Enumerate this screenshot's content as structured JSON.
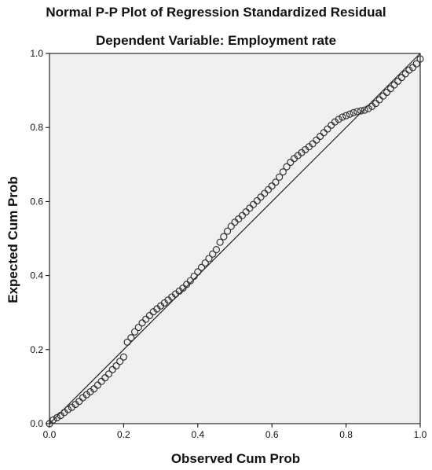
{
  "chart_data": {
    "type": "scatter",
    "title": "Normal P-P Plot of Regression Standardized Residual",
    "subtitle": "Dependent Variable: Employment rate",
    "xlabel": "Observed Cum Prob",
    "ylabel": "Expected Cum Prob",
    "xlim": [
      0,
      1
    ],
    "ylim": [
      0,
      1
    ],
    "xticks": [
      "0.0",
      "0.2",
      "0.4",
      "0.6",
      "0.8",
      "1.0"
    ],
    "yticks": [
      "0.0",
      "0.2",
      "0.4",
      "0.6",
      "0.8",
      "1.0"
    ],
    "reference_line": [
      [
        0,
        0
      ],
      [
        1,
        1
      ]
    ],
    "grid": false,
    "plot_background": "#f0f0f0",
    "marker_color": "#333333",
    "points": [
      [
        0.0,
        0.0
      ],
      [
        0.01,
        0.01
      ],
      [
        0.02,
        0.016
      ],
      [
        0.03,
        0.022
      ],
      [
        0.04,
        0.03
      ],
      [
        0.05,
        0.038
      ],
      [
        0.06,
        0.044
      ],
      [
        0.07,
        0.052
      ],
      [
        0.08,
        0.06
      ],
      [
        0.09,
        0.07
      ],
      [
        0.1,
        0.078
      ],
      [
        0.11,
        0.086
      ],
      [
        0.12,
        0.094
      ],
      [
        0.13,
        0.104
      ],
      [
        0.14,
        0.114
      ],
      [
        0.15,
        0.124
      ],
      [
        0.16,
        0.134
      ],
      [
        0.17,
        0.146
      ],
      [
        0.18,
        0.156
      ],
      [
        0.19,
        0.168
      ],
      [
        0.2,
        0.18
      ],
      [
        0.21,
        0.22
      ],
      [
        0.22,
        0.232
      ],
      [
        0.23,
        0.248
      ],
      [
        0.24,
        0.26
      ],
      [
        0.25,
        0.272
      ],
      [
        0.26,
        0.282
      ],
      [
        0.27,
        0.292
      ],
      [
        0.28,
        0.302
      ],
      [
        0.29,
        0.31
      ],
      [
        0.3,
        0.318
      ],
      [
        0.31,
        0.326
      ],
      [
        0.32,
        0.334
      ],
      [
        0.33,
        0.342
      ],
      [
        0.34,
        0.35
      ],
      [
        0.35,
        0.358
      ],
      [
        0.36,
        0.366
      ],
      [
        0.37,
        0.376
      ],
      [
        0.38,
        0.386
      ],
      [
        0.39,
        0.398
      ],
      [
        0.4,
        0.41
      ],
      [
        0.41,
        0.422
      ],
      [
        0.42,
        0.434
      ],
      [
        0.43,
        0.446
      ],
      [
        0.44,
        0.458
      ],
      [
        0.45,
        0.47
      ],
      [
        0.46,
        0.49
      ],
      [
        0.47,
        0.505
      ],
      [
        0.48,
        0.52
      ],
      [
        0.49,
        0.533
      ],
      [
        0.5,
        0.544
      ],
      [
        0.51,
        0.553
      ],
      [
        0.52,
        0.562
      ],
      [
        0.53,
        0.572
      ],
      [
        0.54,
        0.582
      ],
      [
        0.55,
        0.592
      ],
      [
        0.56,
        0.602
      ],
      [
        0.57,
        0.612
      ],
      [
        0.58,
        0.622
      ],
      [
        0.59,
        0.632
      ],
      [
        0.6,
        0.642
      ],
      [
        0.61,
        0.652
      ],
      [
        0.62,
        0.666
      ],
      [
        0.63,
        0.68
      ],
      [
        0.64,
        0.694
      ],
      [
        0.65,
        0.706
      ],
      [
        0.66,
        0.716
      ],
      [
        0.67,
        0.724
      ],
      [
        0.68,
        0.732
      ],
      [
        0.69,
        0.74
      ],
      [
        0.7,
        0.748
      ],
      [
        0.71,
        0.756
      ],
      [
        0.72,
        0.766
      ],
      [
        0.73,
        0.776
      ],
      [
        0.74,
        0.786
      ],
      [
        0.75,
        0.796
      ],
      [
        0.76,
        0.806
      ],
      [
        0.77,
        0.815
      ],
      [
        0.78,
        0.822
      ],
      [
        0.79,
        0.828
      ],
      [
        0.8,
        0.832
      ],
      [
        0.81,
        0.836
      ],
      [
        0.82,
        0.84
      ],
      [
        0.83,
        0.843
      ],
      [
        0.84,
        0.845
      ],
      [
        0.85,
        0.847
      ],
      [
        0.86,
        0.851
      ],
      [
        0.87,
        0.857
      ],
      [
        0.88,
        0.865
      ],
      [
        0.89,
        0.875
      ],
      [
        0.9,
        0.885
      ],
      [
        0.91,
        0.895
      ],
      [
        0.92,
        0.905
      ],
      [
        0.93,
        0.915
      ],
      [
        0.94,
        0.925
      ],
      [
        0.95,
        0.935
      ],
      [
        0.96,
        0.945
      ],
      [
        0.97,
        0.955
      ],
      [
        0.98,
        0.962
      ],
      [
        0.99,
        0.972
      ],
      [
        1.0,
        0.985
      ]
    ]
  }
}
